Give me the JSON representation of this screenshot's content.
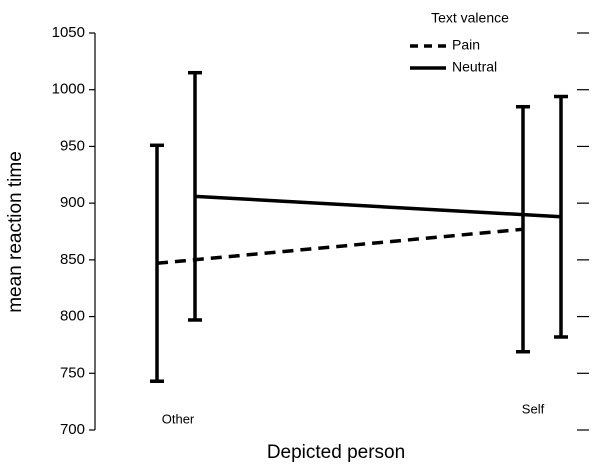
{
  "chart_data": {
    "type": "line",
    "x_label": "Depicted person",
    "y_label": "mean reaction time",
    "legend_title": "Text valence",
    "categories": [
      "Other",
      "Self"
    ],
    "series": [
      {
        "name": "Pain",
        "color": "#000000",
        "dash": true,
        "values": [
          847,
          877
        ],
        "errors": [
          104,
          108
        ]
      },
      {
        "name": "Neutral",
        "color": "#000000",
        "dash": false,
        "values": [
          906,
          888
        ],
        "errors": [
          109,
          106
        ]
      }
    ],
    "ylim": [
      700,
      1050
    ],
    "yticks": [
      700,
      750,
      800,
      850,
      900,
      950,
      1000,
      1050
    ],
    "legend": "top-right"
  }
}
